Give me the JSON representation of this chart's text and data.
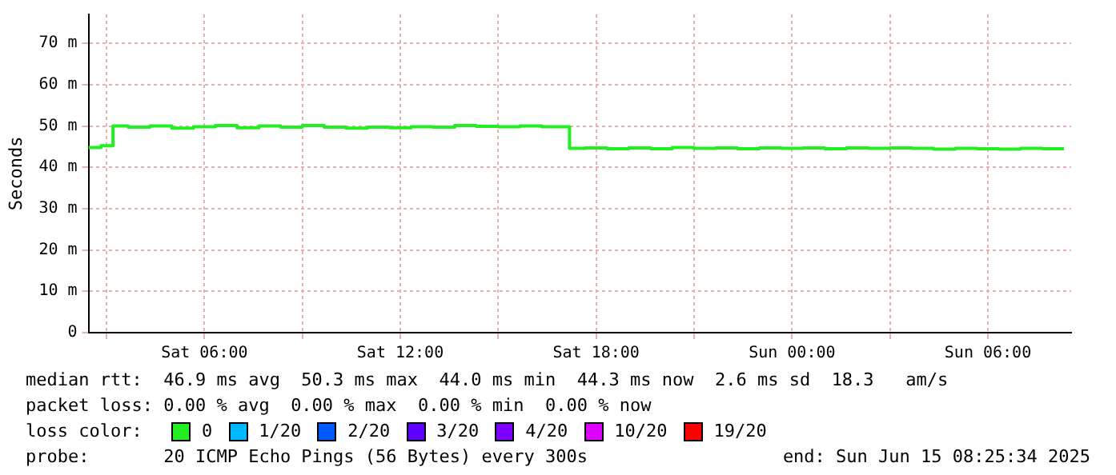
{
  "chart_data": {
    "type": "step",
    "ylabel": "Seconds",
    "legend_title": "loss color:",
    "legend": "bottom",
    "grid": true,
    "marker": "none",
    "line_style": "solid",
    "xlim": [
      "2025-06-14T02:27",
      "2025-06-15T08:33"
    ],
    "xticks": [
      {
        "value": "2025-06-14T03:00",
        "label": null
      },
      {
        "value": "2025-06-14T06:00",
        "label": "Sat 06:00"
      },
      {
        "value": "2025-06-14T09:00",
        "label": null
      },
      {
        "value": "2025-06-14T12:00",
        "label": "Sat 12:00"
      },
      {
        "value": "2025-06-14T15:00",
        "label": null
      },
      {
        "value": "2025-06-14T18:00",
        "label": "Sat 18:00"
      },
      {
        "value": "2025-06-14T21:00",
        "label": null
      },
      {
        "value": "2025-06-15T00:00",
        "label": "Sun 00:00"
      },
      {
        "value": "2025-06-15T03:00",
        "label": null
      },
      {
        "value": "2025-06-15T06:00",
        "label": "Sun 06:00"
      }
    ],
    "ylim": [
      0,
      77
    ],
    "yticks": [
      0,
      {
        "value": 10,
        "label": "10 m"
      },
      {
        "value": 20,
        "label": "20 m"
      },
      {
        "value": 30,
        "label": "30 m"
      },
      {
        "value": 40,
        "label": "40 m"
      },
      {
        "value": 50,
        "label": "50 m"
      },
      {
        "value": 60,
        "label": "60 m"
      },
      {
        "value": 70,
        "label": "70 m"
      }
    ],
    "x": [
      "2025-06-14T02:27",
      "2025-06-14T02:50",
      "2025-06-14T03:12",
      "2025-06-14T03:40",
      "2025-06-14T04:20",
      "2025-06-14T05:00",
      "2025-06-14T05:40",
      "2025-06-14T06:20",
      "2025-06-14T07:00",
      "2025-06-14T07:40",
      "2025-06-14T08:20",
      "2025-06-14T09:00",
      "2025-06-14T09:40",
      "2025-06-14T10:20",
      "2025-06-14T11:00",
      "2025-06-14T11:40",
      "2025-06-14T12:20",
      "2025-06-14T13:00",
      "2025-06-14T13:40",
      "2025-06-14T14:20",
      "2025-06-14T15:00",
      "2025-06-14T15:40",
      "2025-06-14T16:20",
      "2025-06-14T17:11",
      "2025-06-14T17:40",
      "2025-06-14T18:20",
      "2025-06-14T19:00",
      "2025-06-14T19:40",
      "2025-06-14T20:20",
      "2025-06-14T21:00",
      "2025-06-14T21:40",
      "2025-06-14T22:20",
      "2025-06-14T23:00",
      "2025-06-14T23:40",
      "2025-06-15T00:20",
      "2025-06-15T01:00",
      "2025-06-15T01:40",
      "2025-06-15T02:20",
      "2025-06-15T03:00",
      "2025-06-15T03:40",
      "2025-06-15T04:20",
      "2025-06-15T05:00",
      "2025-06-15T05:40",
      "2025-06-15T06:20",
      "2025-06-15T07:00",
      "2025-06-15T07:40",
      "2025-06-15T08:20"
    ],
    "series": [
      {
        "name": "0",
        "color": "#22ee22",
        "values": [
          44.8,
          45.2,
          50.0,
          49.7,
          50.0,
          49.5,
          49.8,
          50.1,
          49.6,
          50.0,
          49.7,
          50.1,
          49.7,
          49.5,
          49.7,
          49.6,
          49.8,
          49.7,
          50.1,
          49.9,
          49.8,
          50.0,
          49.8,
          44.6,
          44.7,
          44.5,
          44.7,
          44.5,
          44.8,
          44.6,
          44.7,
          44.5,
          44.7,
          44.6,
          44.7,
          44.5,
          44.7,
          44.6,
          44.7,
          44.6,
          44.4,
          44.6,
          44.5,
          44.4,
          44.6,
          44.5,
          44.5
        ]
      },
      {
        "name": "1/20",
        "color": "#00b8ff",
        "values": [
          null,
          null,
          null,
          null,
          null,
          null,
          null,
          null,
          null,
          null,
          null,
          null,
          null,
          null,
          null,
          null,
          null,
          null,
          null,
          null,
          null,
          null,
          null,
          null,
          null,
          null,
          null,
          null,
          null,
          null,
          null,
          null,
          null,
          null,
          null,
          null,
          null,
          null,
          null,
          null,
          null,
          null,
          null,
          null,
          null,
          null,
          null
        ]
      },
      {
        "name": "2/20",
        "color": "#0059ff",
        "values": [
          null,
          null,
          null,
          null,
          null,
          null,
          null,
          null,
          null,
          null,
          null,
          null,
          null,
          null,
          null,
          null,
          null,
          null,
          null,
          null,
          null,
          null,
          null,
          null,
          null,
          null,
          null,
          null,
          null,
          null,
          null,
          null,
          null,
          null,
          null,
          null,
          null,
          null,
          null,
          null,
          null,
          null,
          null,
          null,
          null,
          null,
          null
        ]
      },
      {
        "name": "3/20",
        "color": "#5e00ff",
        "values": [
          null,
          null,
          null,
          null,
          null,
          null,
          null,
          null,
          null,
          null,
          null,
          null,
          null,
          null,
          null,
          null,
          null,
          null,
          null,
          null,
          null,
          null,
          null,
          null,
          null,
          null,
          null,
          null,
          null,
          null,
          null,
          null,
          null,
          null,
          null,
          null,
          null,
          null,
          null,
          null,
          null,
          null,
          null,
          null,
          null,
          null,
          null
        ]
      },
      {
        "name": "4/20",
        "color": "#7e00ff",
        "values": [
          null,
          null,
          null,
          null,
          null,
          null,
          null,
          null,
          null,
          null,
          null,
          null,
          null,
          null,
          null,
          null,
          null,
          null,
          null,
          null,
          null,
          null,
          null,
          null,
          null,
          null,
          null,
          null,
          null,
          null,
          null,
          null,
          null,
          null,
          null,
          null,
          null,
          null,
          null,
          null,
          null,
          null,
          null,
          null,
          null,
          null,
          null
        ]
      },
      {
        "name": "10/20",
        "color": "#dd00ff",
        "values": [
          null,
          null,
          null,
          null,
          null,
          null,
          null,
          null,
          null,
          null,
          null,
          null,
          null,
          null,
          null,
          null,
          null,
          null,
          null,
          null,
          null,
          null,
          null,
          null,
          null,
          null,
          null,
          null,
          null,
          null,
          null,
          null,
          null,
          null,
          null,
          null,
          null,
          null,
          null,
          null,
          null,
          null,
          null,
          null,
          null,
          null,
          null
        ]
      },
      {
        "name": "19/20",
        "color": "#ff0000",
        "values": [
          null,
          null,
          null,
          null,
          null,
          null,
          null,
          null,
          null,
          null,
          null,
          null,
          null,
          null,
          null,
          null,
          null,
          null,
          null,
          null,
          null,
          null,
          null,
          null,
          null,
          null,
          null,
          null,
          null,
          null,
          null,
          null,
          null,
          null,
          null,
          null,
          null,
          null,
          null,
          null,
          null,
          null,
          null,
          null,
          null,
          null,
          null
        ]
      }
    ],
    "annotations": [
      "median rtt:  46.9 ms avg  50.3 ms max  44.0 ms min  44.3 ms now  2.6 ms sd  18.3   am/s",
      "packet loss: 0.00 % avg  0.00 % max  0.00 % min  0.00 % now",
      "probe:       20 ICMP Echo Pings (56 Bytes) every 300s",
      "end: Sun Jun 15 08:25:34 2025"
    ]
  }
}
